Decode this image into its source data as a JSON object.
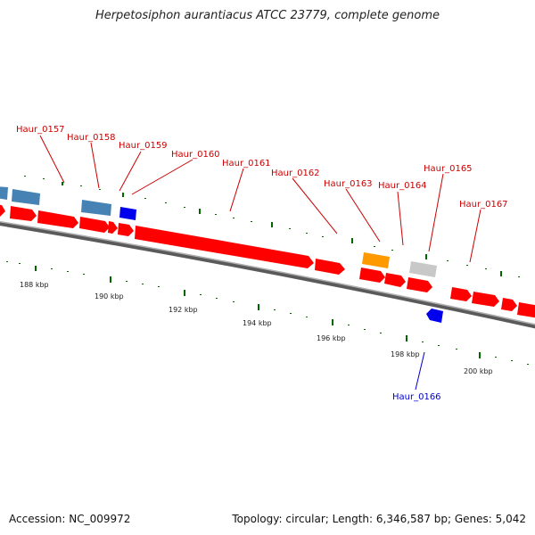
{
  "title": "Herpetosiphon aurantiacus ATCC 23779, complete genome",
  "footer": {
    "accession": "Accession: NC_009972",
    "summary": "Topology: circular; Length: 6,346,587 bp; Genes: 5,042"
  },
  "colors": {
    "cds": "#ff0000",
    "steelblue": "#4682b4",
    "blue": "#0000ee",
    "orange": "#ff9900",
    "gray": "#c8c8c8",
    "label_red": "#cc0000",
    "label_blue": "#0000cc",
    "tick": "#006600",
    "backbone": "#888888"
  },
  "scale_labels": [
    "188 kbp",
    "190 kbp",
    "192 kbp",
    "194 kbp",
    "196 kbp",
    "198 kbp",
    "200 kbp"
  ],
  "gene_labels": [
    {
      "name": "Haur_0157",
      "color": "red"
    },
    {
      "name": "Haur_0158",
      "color": "red"
    },
    {
      "name": "Haur_0159",
      "color": "red"
    },
    {
      "name": "Haur_0160",
      "color": "red"
    },
    {
      "name": "Haur_0161",
      "color": "red"
    },
    {
      "name": "Haur_0162",
      "color": "red"
    },
    {
      "name": "Haur_0163",
      "color": "red"
    },
    {
      "name": "Haur_0164",
      "color": "red"
    },
    {
      "name": "Haur_0165",
      "color": "red"
    },
    {
      "name": "Haur_0167",
      "color": "red"
    },
    {
      "name": "Haur_0166",
      "color": "blue"
    }
  ]
}
